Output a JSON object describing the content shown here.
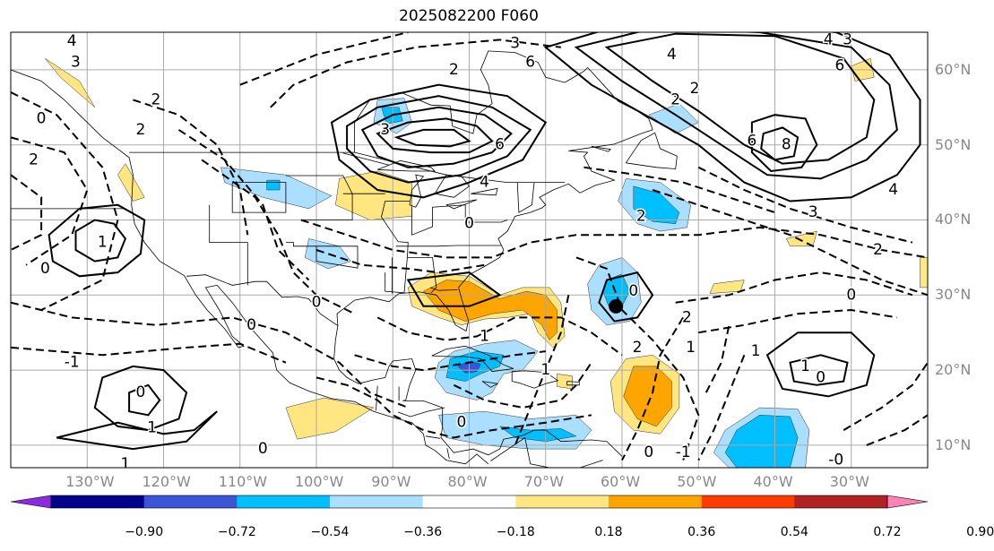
{
  "title": "2025082200 F060",
  "map": {
    "projection": "cylindrical",
    "lon_range": [
      -140,
      -20
    ],
    "lat_range": [
      7,
      65
    ],
    "coastline_color": "#000000",
    "grid": true
  },
  "lon_labels": [
    "130°W",
    "120°W",
    "110°W",
    "100°W",
    "90°W",
    "80°W",
    "70°W",
    "60°W",
    "50°W",
    "40°W",
    "30°W"
  ],
  "lat_labels": [
    "60°N",
    "50°N",
    "40°N",
    "30°N",
    "20°N",
    "10°N"
  ],
  "contour_labels": [
    {
      "text": "4",
      "lon": -132,
      "lat": 63.8
    },
    {
      "text": "3",
      "lon": -131.5,
      "lat": 61
    },
    {
      "text": "2",
      "lon": -121,
      "lat": 56
    },
    {
      "text": "0",
      "lon": -136,
      "lat": 53.5
    },
    {
      "text": "2",
      "lon": -137,
      "lat": 48
    },
    {
      "text": "2",
      "lon": -123,
      "lat": 52
    },
    {
      "text": "1",
      "lon": -128,
      "lat": 37
    },
    {
      "text": "0",
      "lon": -135.5,
      "lat": 33.5
    },
    {
      "text": "-1",
      "lon": -132,
      "lat": 21
    },
    {
      "text": "0",
      "lon": -123,
      "lat": 17
    },
    {
      "text": "1",
      "lon": -121.5,
      "lat": 12.3
    },
    {
      "text": "1",
      "lon": -125,
      "lat": 7.5
    },
    {
      "text": "0",
      "lon": -100,
      "lat": 29
    },
    {
      "text": "0",
      "lon": -108.5,
      "lat": 26
    },
    {
      "text": "0",
      "lon": -107,
      "lat": 9.5
    },
    {
      "text": "0",
      "lon": -81,
      "lat": 13
    },
    {
      "text": "3",
      "lon": -91,
      "lat": 52
    },
    {
      "text": "6",
      "lon": -76,
      "lat": 50
    },
    {
      "text": "4",
      "lon": -78,
      "lat": 45
    },
    {
      "text": "0",
      "lon": -80,
      "lat": 39.5
    },
    {
      "text": "2",
      "lon": -82,
      "lat": 60
    },
    {
      "text": "6",
      "lon": -72,
      "lat": 61
    },
    {
      "text": "3",
      "lon": -74,
      "lat": 63.5
    },
    {
      "text": "4",
      "lon": -53.5,
      "lat": 62
    },
    {
      "text": "2",
      "lon": -50.5,
      "lat": 57.5
    },
    {
      "text": "2",
      "lon": -53,
      "lat": 56
    },
    {
      "text": "6",
      "lon": -43,
      "lat": 50.5
    },
    {
      "text": "8",
      "lon": -38.5,
      "lat": 50
    },
    {
      "text": "4",
      "lon": -33,
      "lat": 64
    },
    {
      "text": "3",
      "lon": -30.5,
      "lat": 64
    },
    {
      "text": "6",
      "lon": -31.5,
      "lat": 60.5
    },
    {
      "text": "4",
      "lon": -24.5,
      "lat": 44
    },
    {
      "text": "3",
      "lon": -35,
      "lat": 41
    },
    {
      "text": "2",
      "lon": -26.5,
      "lat": 36
    },
    {
      "text": "2",
      "lon": -57.5,
      "lat": 40.5
    },
    {
      "text": "0",
      "lon": -58.5,
      "lat": 30.5
    },
    {
      "text": "2",
      "lon": -51.5,
      "lat": 27
    },
    {
      "text": "2",
      "lon": -58,
      "lat": 23
    },
    {
      "text": "1",
      "lon": -51,
      "lat": 23
    },
    {
      "text": "0",
      "lon": -30,
      "lat": 30
    },
    {
      "text": "1",
      "lon": -36,
      "lat": 20.5
    },
    {
      "text": "1",
      "lon": -42.5,
      "lat": 22.5
    },
    {
      "text": "0",
      "lon": -34,
      "lat": 19
    },
    {
      "text": "-1",
      "lon": -52,
      "lat": 9
    },
    {
      "text": "-0",
      "lon": -32,
      "lat": 8
    },
    {
      "text": "1",
      "lon": -70,
      "lat": 20
    },
    {
      "text": "0",
      "lon": -56.5,
      "lat": 9
    },
    {
      "text": "1",
      "lon": -78,
      "lat": 24.5
    }
  ],
  "colorbar": {
    "labels": [
      "−0.90",
      "−0.72",
      "−0.54",
      "−0.36",
      "−0.18",
      "0.18",
      "0.36",
      "0.54",
      "0.72",
      "0.90"
    ],
    "colors": [
      "#8a2be2",
      "#00008b",
      "#3a55d5",
      "#00bfff",
      "#aadfff",
      "#ffffff",
      "#ffe680",
      "#ffa500",
      "#ff3c00",
      "#b22222",
      "#ff82b4"
    ]
  },
  "fill_colors": {
    "c018": "#aadfff",
    "c036": "#00bfff",
    "c054": "#3a55d5",
    "w018": "#ffe680",
    "w036": "#ffa500",
    "w054": "#ff3c00"
  },
  "marker_color": "#000000"
}
